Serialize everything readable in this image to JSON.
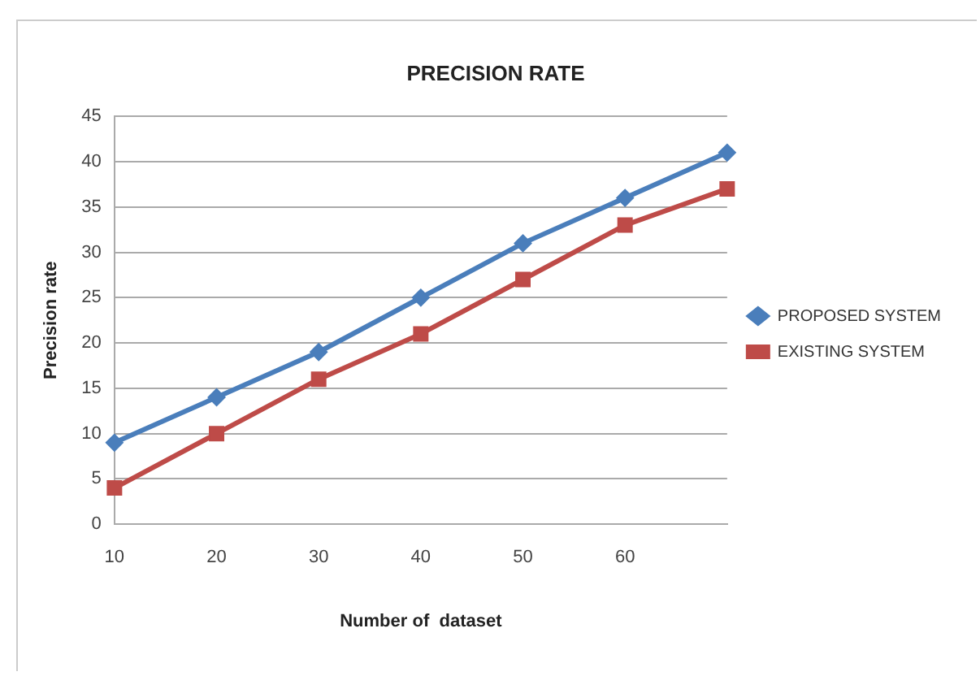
{
  "chart_data": {
    "type": "line",
    "title": "PRECISION RATE",
    "xlabel": "Number of  dataset",
    "ylabel": "Precision rate",
    "categories": [
      "10",
      "20",
      "30",
      "40",
      "50",
      "60",
      null
    ],
    "series": [
      {
        "name": "PROPOSED SYSTEM",
        "color": "#4a7ebb",
        "marker": "diamond",
        "values": [
          9,
          14,
          19,
          25,
          31,
          36,
          41
        ]
      },
      {
        "name": "EXISTING SYSTEM",
        "color": "#be4b48",
        "marker": "square",
        "values": [
          4,
          10,
          16,
          21,
          27,
          33,
          37
        ]
      }
    ],
    "ylim": [
      0,
      45
    ],
    "yticks": [
      0,
      5,
      10,
      15,
      20,
      25,
      30,
      35,
      40,
      45
    ],
    "grid": "y",
    "legend": "right"
  }
}
